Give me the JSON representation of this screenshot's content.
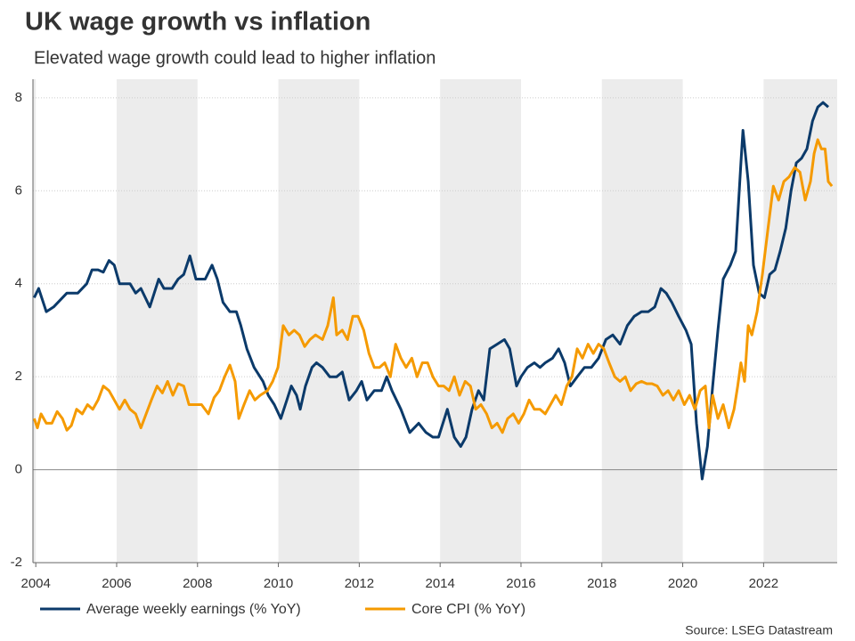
{
  "chart_data": {
    "type": "line",
    "title": "UK wage growth vs inflation",
    "subtitle": "Elevated wage growth could lead to higher inflation",
    "source": "Source: LSEG Datastream",
    "xlim": [
      2003.93,
      2023.82
    ],
    "xticks": [
      2004,
      2006,
      2008,
      2010,
      2012,
      2014,
      2016,
      2018,
      2020,
      2022
    ],
    "ylim": [
      -2,
      8.4
    ],
    "yticks": [
      -2,
      0,
      2,
      4,
      6,
      8
    ],
    "grid": true,
    "alternate_shading": true,
    "legend": "bottom-left",
    "series": [
      {
        "name": "Average weekly earnings (% YoY)",
        "color": "#0b3a6a",
        "x": [
          2003.96,
          2004.07,
          2004.26,
          2004.44,
          2004.77,
          2005.04,
          2005.26,
          2005.39,
          2005.54,
          2005.67,
          2005.81,
          2005.94,
          2006.07,
          2006.33,
          2006.47,
          2006.6,
          2006.82,
          2007.04,
          2007.17,
          2007.37,
          2007.52,
          2007.66,
          2007.81,
          2007.96,
          2008.19,
          2008.36,
          2008.49,
          2008.63,
          2008.8,
          2008.96,
          2009.07,
          2009.22,
          2009.4,
          2009.62,
          2009.75,
          2009.9,
          2010.06,
          2010.21,
          2010.32,
          2010.45,
          2010.54,
          2010.67,
          2010.83,
          2010.94,
          2011.09,
          2011.27,
          2011.44,
          2011.58,
          2011.75,
          2011.93,
          2012.06,
          2012.19,
          2012.37,
          2012.55,
          2012.68,
          2012.81,
          2013.03,
          2013.25,
          2013.47,
          2013.65,
          2013.82,
          2013.96,
          2014.18,
          2014.35,
          2014.51,
          2014.64,
          2014.79,
          2014.95,
          2015.08,
          2015.23,
          2015.41,
          2015.59,
          2015.72,
          2015.89,
          2016.0,
          2016.16,
          2016.33,
          2016.47,
          2016.6,
          2016.78,
          2016.93,
          2017.08,
          2017.22,
          2017.39,
          2017.57,
          2017.74,
          2017.92,
          2018.1,
          2018.27,
          2018.45,
          2018.63,
          2018.8,
          2018.98,
          2019.15,
          2019.31,
          2019.46,
          2019.59,
          2019.73,
          2019.9,
          2020.08,
          2020.21,
          2020.34,
          2020.48,
          2020.61,
          2020.74,
          2020.87,
          2021.0,
          2021.18,
          2021.31,
          2021.44,
          2021.49,
          2021.62,
          2021.75,
          2021.89,
          2022.02,
          2022.15,
          2022.28,
          2022.41,
          2022.55,
          2022.68,
          2022.81,
          2022.94,
          2023.07,
          2023.21,
          2023.34,
          2023.47,
          2023.6
        ],
        "values": [
          3.7,
          3.9,
          3.4,
          3.5,
          3.8,
          3.8,
          4.0,
          4.3,
          4.3,
          4.25,
          4.5,
          4.4,
          4.0,
          4.0,
          3.8,
          3.9,
          3.5,
          4.1,
          3.9,
          3.9,
          4.1,
          4.2,
          4.6,
          4.1,
          4.1,
          4.4,
          4.1,
          3.6,
          3.4,
          3.4,
          3.1,
          2.6,
          2.2,
          1.9,
          1.6,
          1.4,
          1.1,
          1.5,
          1.8,
          1.6,
          1.3,
          1.8,
          2.2,
          2.3,
          2.2,
          2.0,
          2.0,
          2.1,
          1.5,
          1.7,
          1.9,
          1.5,
          1.7,
          1.7,
          2.0,
          1.7,
          1.3,
          0.8,
          1.0,
          0.8,
          0.7,
          0.7,
          1.3,
          0.7,
          0.5,
          0.7,
          1.3,
          1.7,
          1.5,
          2.6,
          2.7,
          2.8,
          2.6,
          1.8,
          2.0,
          2.2,
          2.3,
          2.2,
          2.3,
          2.4,
          2.6,
          2.3,
          1.8,
          2.0,
          2.2,
          2.2,
          2.4,
          2.8,
          2.9,
          2.7,
          3.1,
          3.3,
          3.4,
          3.4,
          3.5,
          3.9,
          3.8,
          3.6,
          3.3,
          3.0,
          2.7,
          1.0,
          -0.2,
          0.5,
          1.8,
          3.0,
          4.1,
          4.4,
          4.7,
          6.6,
          7.3,
          6.2,
          4.4,
          3.8,
          3.7,
          4.2,
          4.3,
          4.7,
          5.2,
          6.0,
          6.6,
          6.7,
          6.9,
          7.5,
          7.8,
          7.9,
          7.8
        ]
      },
      {
        "name": "Core CPI (% YoY)",
        "color": "#f59a00",
        "x": [
          2003.96,
          2004.04,
          2004.13,
          2004.26,
          2004.4,
          2004.53,
          2004.66,
          2004.77,
          2004.88,
          2005.01,
          2005.15,
          2005.28,
          2005.41,
          2005.54,
          2005.67,
          2005.81,
          2005.94,
          2006.07,
          2006.2,
          2006.33,
          2006.47,
          2006.6,
          2006.73,
          2006.86,
          2007.0,
          2007.13,
          2007.26,
          2007.39,
          2007.52,
          2007.66,
          2007.79,
          2007.92,
          2008.1,
          2008.27,
          2008.41,
          2008.54,
          2008.67,
          2008.8,
          2008.93,
          2009.02,
          2009.15,
          2009.29,
          2009.42,
          2009.55,
          2009.73,
          2009.86,
          2009.99,
          2010.12,
          2010.26,
          2010.39,
          2010.52,
          2010.65,
          2010.78,
          2010.92,
          2011.09,
          2011.22,
          2011.36,
          2011.44,
          2011.58,
          2011.71,
          2011.84,
          2011.97,
          2012.11,
          2012.24,
          2012.37,
          2012.5,
          2012.63,
          2012.77,
          2012.9,
          2013.03,
          2013.16,
          2013.3,
          2013.43,
          2013.56,
          2013.69,
          2013.82,
          2013.96,
          2014.09,
          2014.22,
          2014.35,
          2014.48,
          2014.62,
          2014.75,
          2014.88,
          2015.01,
          2015.15,
          2015.28,
          2015.41,
          2015.54,
          2015.67,
          2015.81,
          2015.94,
          2016.07,
          2016.2,
          2016.33,
          2016.47,
          2016.6,
          2016.73,
          2016.86,
          2017.0,
          2017.13,
          2017.26,
          2017.39,
          2017.52,
          2017.66,
          2017.79,
          2017.92,
          2018.05,
          2018.18,
          2018.32,
          2018.45,
          2018.58,
          2018.71,
          2018.85,
          2018.98,
          2019.11,
          2019.24,
          2019.37,
          2019.51,
          2019.64,
          2019.77,
          2019.9,
          2020.04,
          2020.17,
          2020.3,
          2020.43,
          2020.56,
          2020.65,
          2020.74,
          2020.87,
          2021.0,
          2021.14,
          2021.27,
          2021.36,
          2021.44,
          2021.53,
          2021.62,
          2021.71,
          2021.84,
          2021.97,
          2022.11,
          2022.24,
          2022.37,
          2022.5,
          2022.63,
          2022.77,
          2022.9,
          2023.03,
          2023.16,
          2023.25,
          2023.34,
          2023.43,
          2023.52,
          2023.6,
          2023.69
        ],
        "values": [
          1.1,
          0.9,
          1.2,
          1.0,
          1.0,
          1.25,
          1.1,
          0.85,
          0.95,
          1.3,
          1.2,
          1.4,
          1.3,
          1.5,
          1.8,
          1.7,
          1.5,
          1.3,
          1.5,
          1.3,
          1.2,
          0.9,
          1.2,
          1.5,
          1.8,
          1.65,
          1.9,
          1.6,
          1.85,
          1.8,
          1.4,
          1.4,
          1.4,
          1.2,
          1.55,
          1.7,
          2.0,
          2.25,
          1.9,
          1.1,
          1.4,
          1.7,
          1.5,
          1.6,
          1.7,
          1.9,
          2.2,
          3.1,
          2.9,
          3.0,
          2.9,
          2.65,
          2.8,
          2.9,
          2.8,
          3.1,
          3.7,
          2.9,
          3.0,
          2.8,
          3.3,
          3.3,
          3.0,
          2.5,
          2.2,
          2.2,
          2.3,
          2.0,
          2.7,
          2.4,
          2.2,
          2.4,
          2.0,
          2.3,
          2.3,
          2.0,
          1.8,
          1.8,
          1.7,
          2.0,
          1.6,
          1.9,
          1.8,
          1.3,
          1.4,
          1.2,
          0.9,
          1.0,
          0.8,
          1.1,
          1.2,
          1.0,
          1.2,
          1.5,
          1.3,
          1.3,
          1.2,
          1.4,
          1.6,
          1.4,
          1.8,
          2.0,
          2.6,
          2.4,
          2.7,
          2.5,
          2.7,
          2.6,
          2.3,
          2.0,
          1.9,
          2.0,
          1.7,
          1.85,
          1.9,
          1.85,
          1.85,
          1.8,
          1.6,
          1.7,
          1.5,
          1.7,
          1.4,
          1.6,
          1.3,
          1.7,
          1.8,
          0.9,
          1.6,
          1.1,
          1.4,
          0.9,
          1.3,
          1.8,
          2.3,
          1.9,
          3.1,
          2.9,
          3.4,
          4.2,
          5.2,
          6.1,
          5.8,
          6.2,
          6.3,
          6.5,
          6.4,
          5.8,
          6.2,
          6.8,
          7.1,
          6.9,
          6.9,
          6.2,
          6.1
        ]
      }
    ]
  }
}
